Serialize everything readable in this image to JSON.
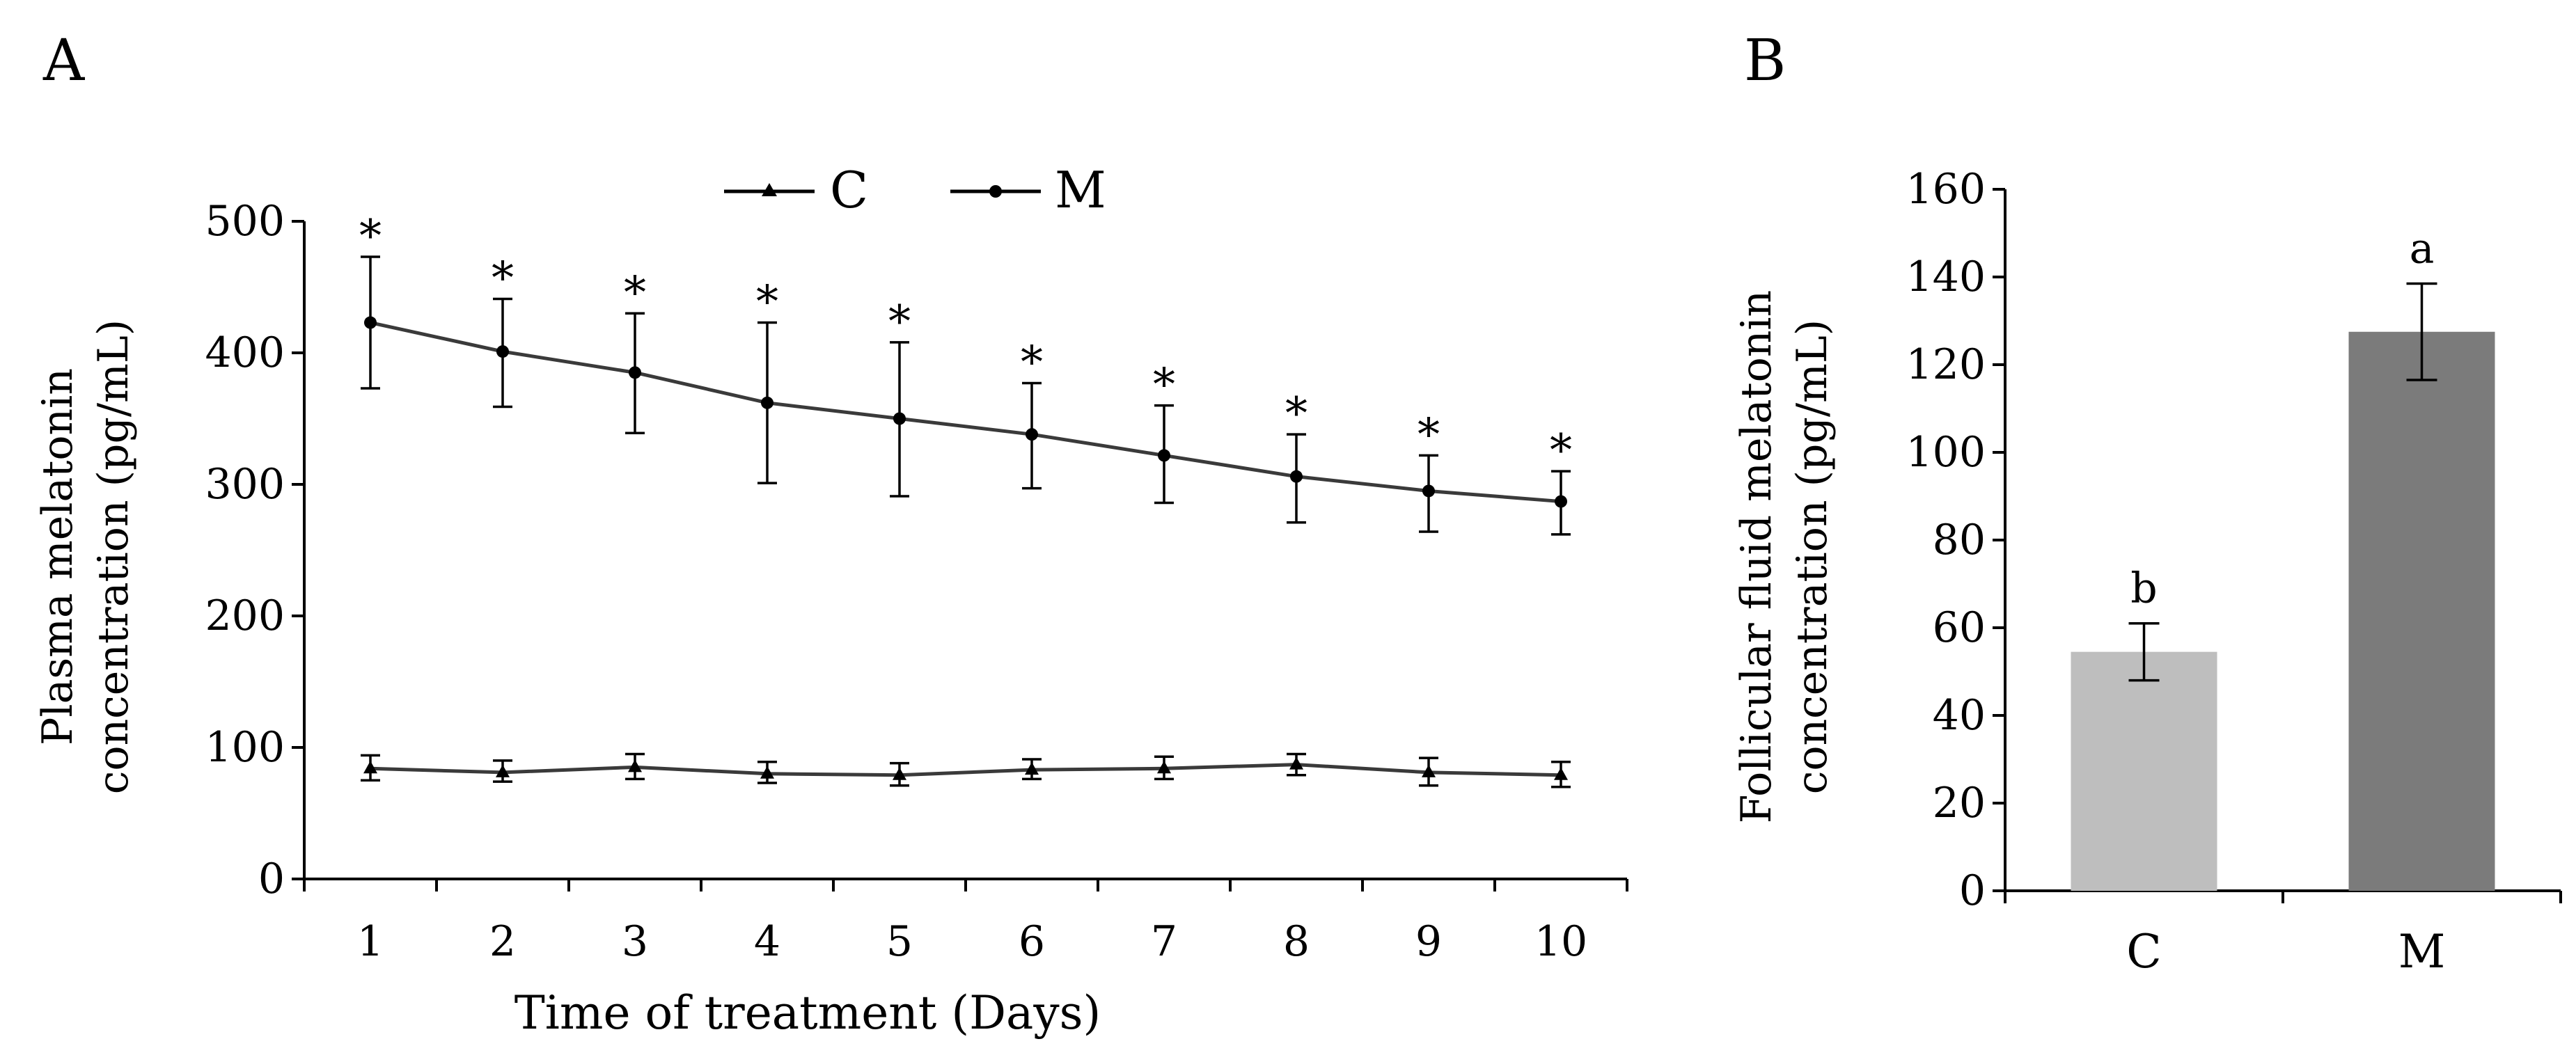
{
  "colors": {
    "axis": "#000000",
    "c_bar": "#bebebe",
    "m_bar": "#7b7b7b",
    "line": "#3a3a3a"
  },
  "chart_data": [
    {
      "panel": "A",
      "type": "line",
      "xlabel": "Time of treatment (Days)",
      "ylabel_lines": [
        "Plasma melatonin",
        "concentration (pg/mL)"
      ],
      "x": [
        1,
        2,
        3,
        4,
        5,
        6,
        7,
        8,
        9,
        10
      ],
      "x_tick_labels": [
        "1",
        "2",
        "3",
        "4",
        "5",
        "6",
        "7",
        "8",
        "9",
        "10"
      ],
      "ylim": [
        0,
        500
      ],
      "y_ticks": [
        0,
        100,
        200,
        300,
        400,
        500
      ],
      "y_tick_labels": [
        "0",
        "100",
        "200",
        "300",
        "400",
        "500"
      ],
      "legend_position": "top-center",
      "series": [
        {
          "name": "C",
          "marker": "triangle",
          "values": [
            84,
            81,
            85,
            80,
            79,
            83,
            84,
            87,
            81,
            79
          ],
          "err_upper": [
            94,
            90,
            95,
            89,
            88,
            91,
            93,
            95,
            92,
            89
          ],
          "err_lower": [
            75,
            74,
            76,
            73,
            71,
            76,
            76,
            79,
            71,
            70
          ]
        },
        {
          "name": "M",
          "marker": "circle",
          "values": [
            423,
            401,
            385,
            362,
            350,
            338,
            322,
            306,
            295,
            287
          ],
          "err_upper": [
            473,
            441,
            430,
            423,
            408,
            377,
            360,
            338,
            322,
            310
          ],
          "err_lower": [
            373,
            359,
            339,
            301,
            291,
            297,
            286,
            271,
            264,
            262
          ]
        }
      ],
      "annotations": [
        "*",
        "*",
        "*",
        "*",
        "*",
        "*",
        "*",
        "*",
        "*",
        "*"
      ]
    },
    {
      "panel": "B",
      "type": "bar",
      "ylabel_lines": [
        "Follicular fluid melatonin",
        "concentration (pg/mL)"
      ],
      "categories": [
        "C",
        "M"
      ],
      "values": [
        54.5,
        127.5
      ],
      "err_upper": [
        61,
        138.5
      ],
      "err_lower": [
        48,
        116.5
      ],
      "bar_letters": [
        "b",
        "a"
      ],
      "ylim": [
        0,
        160
      ],
      "y_ticks": [
        0,
        20,
        40,
        60,
        80,
        100,
        120,
        140,
        160
      ],
      "y_tick_labels": [
        "0",
        "20",
        "40",
        "60",
        "80",
        "100",
        "120",
        "140",
        "160"
      ]
    }
  ]
}
